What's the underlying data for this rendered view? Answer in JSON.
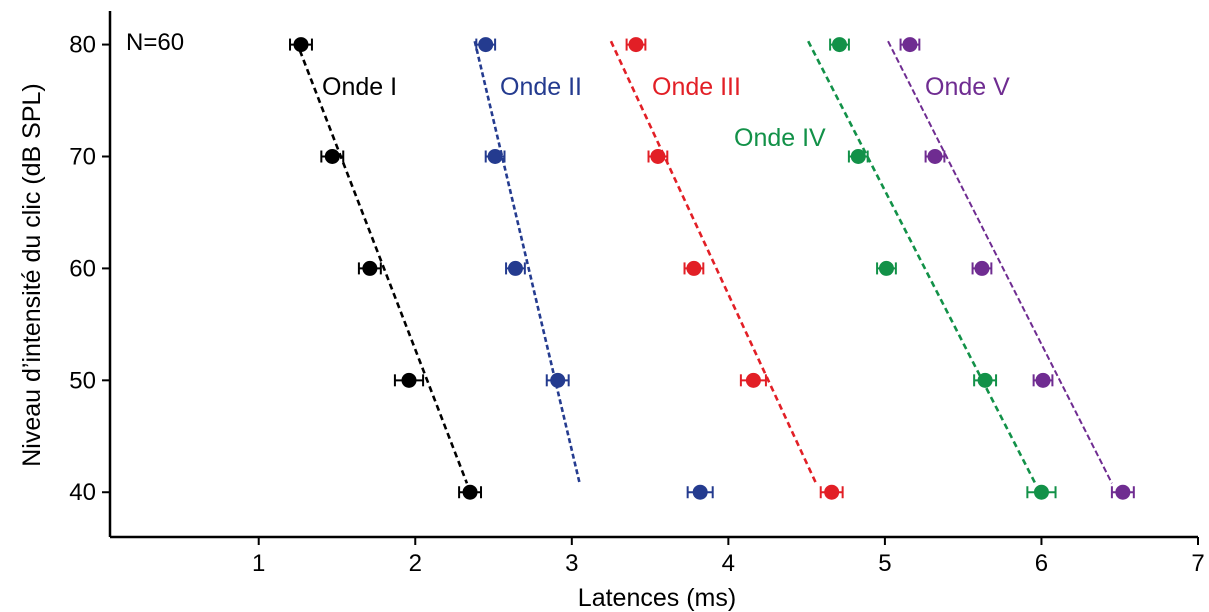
{
  "chart_data": {
    "type": "scatter",
    "annotation": "N=60",
    "xlabel": "Latences (ms)",
    "ylabel": "Niveau d’intensité du clic (dB SPL)",
    "xlim": [
      0.05,
      7
    ],
    "ylim": [
      36,
      83
    ],
    "x_ticks": [
      "1",
      "2",
      "3",
      "4",
      "5",
      "6",
      "7"
    ],
    "y_ticks": [
      "40",
      "50",
      "60",
      "70",
      "80"
    ],
    "x_tick_values": [
      1,
      2,
      3,
      4,
      5,
      6,
      7
    ],
    "y_tick_values": [
      40,
      50,
      60,
      70,
      80
    ],
    "grid": false,
    "series": [
      {
        "name": "Onde I",
        "color": "#000000",
        "points": [
          {
            "x": 1.27,
            "y": 80,
            "err": 0.07
          },
          {
            "x": 1.47,
            "y": 70,
            "err": 0.07
          },
          {
            "x": 1.71,
            "y": 60,
            "err": 0.07
          },
          {
            "x": 1.96,
            "y": 50,
            "err": 0.09
          },
          {
            "x": 2.35,
            "y": 40,
            "err": 0.07
          }
        ],
        "fit": [
          [
            1.24,
            80.3
          ],
          [
            2.33,
            40.8
          ]
        ]
      },
      {
        "name": "Onde II",
        "color": "#243b8f",
        "points": [
          {
            "x": 2.45,
            "y": 80,
            "err": 0.06
          },
          {
            "x": 2.51,
            "y": 70,
            "err": 0.06
          },
          {
            "x": 2.64,
            "y": 60,
            "err": 0.06
          },
          {
            "x": 2.91,
            "y": 50,
            "err": 0.07
          },
          {
            "x": 3.82,
            "y": 40,
            "err": 0.08
          }
        ],
        "fit": [
          [
            2.38,
            80.3
          ],
          [
            3.05,
            40.8
          ]
        ]
      },
      {
        "name": "Onde III",
        "color": "#e21f26",
        "points": [
          {
            "x": 3.41,
            "y": 80,
            "err": 0.06
          },
          {
            "x": 3.55,
            "y": 70,
            "err": 0.06
          },
          {
            "x": 3.78,
            "y": 60,
            "err": 0.06
          },
          {
            "x": 4.16,
            "y": 50,
            "err": 0.08
          },
          {
            "x": 4.66,
            "y": 40,
            "err": 0.07
          }
        ],
        "fit": [
          [
            3.25,
            80.3
          ],
          [
            4.56,
            40.8
          ]
        ]
      },
      {
        "name": "Onde IV",
        "color": "#129148",
        "points": [
          {
            "x": 4.71,
            "y": 80,
            "err": 0.06
          },
          {
            "x": 4.83,
            "y": 70,
            "err": 0.06
          },
          {
            "x": 5.01,
            "y": 60,
            "err": 0.06
          },
          {
            "x": 5.64,
            "y": 50,
            "err": 0.07
          },
          {
            "x": 6.0,
            "y": 40,
            "err": 0.09
          }
        ],
        "fit": [
          [
            4.51,
            80.3
          ],
          [
            5.96,
            40.8
          ]
        ]
      },
      {
        "name": "Onde V",
        "color": "#6f2c91",
        "points": [
          {
            "x": 5.16,
            "y": 80,
            "err": 0.06
          },
          {
            "x": 5.32,
            "y": 70,
            "err": 0.06
          },
          {
            "x": 5.62,
            "y": 60,
            "err": 0.06
          },
          {
            "x": 6.01,
            "y": 50,
            "err": 0.06
          },
          {
            "x": 6.52,
            "y": 40,
            "err": 0.07
          }
        ],
        "fit": [
          [
            5.02,
            80.3
          ],
          [
            6.45,
            40.8
          ]
        ]
      }
    ]
  }
}
